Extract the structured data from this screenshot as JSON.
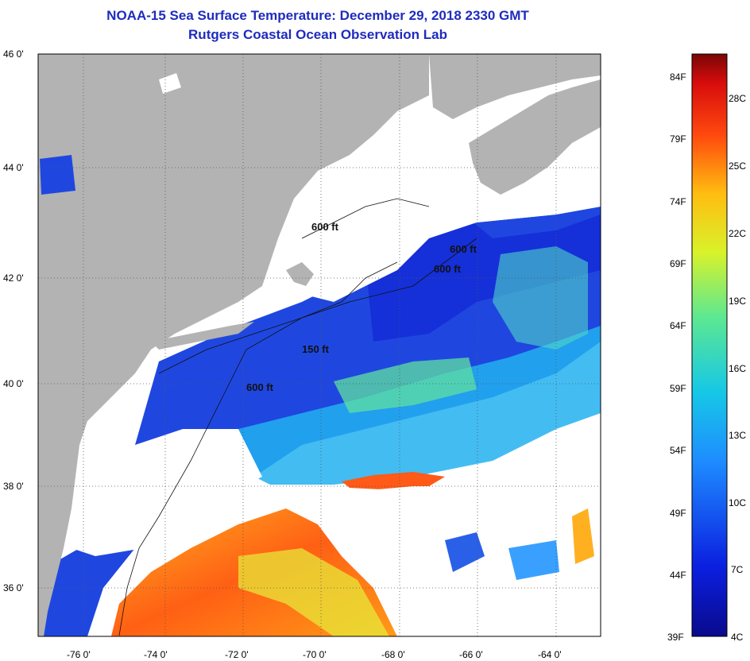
{
  "header": {
    "title": "NOAA-15 Sea Surface Temperature:  December 29, 2018 2330 GMT",
    "subtitle": "Rutgers Coastal Ocean Observation Lab"
  },
  "map": {
    "lat_labels": [
      "46 0'",
      "44 0'",
      "42 0'",
      "40 0'",
      "38 0'",
      "36 0'"
    ],
    "lon_labels": [
      "-76 0'",
      "-74 0'",
      "-72 0'",
      "-70 0'",
      "-68 0'",
      "-66 0'",
      "-64 0'"
    ],
    "contour_labels": [
      "600 ft",
      "600 ft",
      "600 ft",
      "150 ft",
      "600 ft"
    ],
    "colors": {
      "land": "#b3b3b3",
      "cloud": "#ffffff",
      "cold_water": "#1a3dd6",
      "warm_water": "#ff5a10"
    }
  },
  "colorbar": {
    "fahrenheit_labels": [
      "84F",
      "79F",
      "74F",
      "69F",
      "64F",
      "59F",
      "54F",
      "49F",
      "44F",
      "39F"
    ],
    "celsius_labels": [
      "28C",
      "25C",
      "22C",
      "19C",
      "16C",
      "13C",
      "10C",
      "7C",
      "4C"
    ]
  }
}
